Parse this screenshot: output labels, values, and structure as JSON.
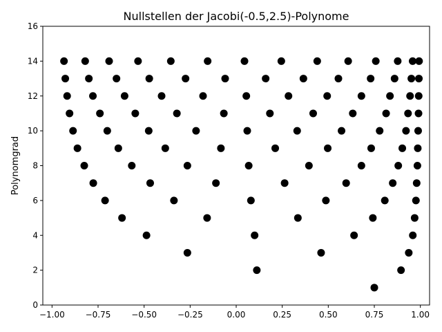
{
  "chart_data": {
    "type": "scatter",
    "title": "Nullstellen der Jacobi(-0.5,2.5)-Polynome",
    "xlabel": "",
    "ylabel": "Polynomgrad",
    "xlim": [
      -1.05,
      1.05
    ],
    "ylim": [
      0,
      16
    ],
    "xticks": [
      -1.0,
      -0.75,
      -0.5,
      -0.25,
      0.0,
      0.25,
      0.5,
      0.75,
      1.0
    ],
    "xtick_labels": [
      "−1.00",
      "−0.75",
      "−0.50",
      "−0.25",
      "0.00",
      "0.25",
      "0.50",
      "0.75",
      "1.00"
    ],
    "yticks": [
      0,
      2,
      4,
      6,
      8,
      10,
      12,
      14,
      16
    ],
    "ytick_labels": [
      "0",
      "2",
      "4",
      "6",
      "8",
      "10",
      "12",
      "14",
      "16"
    ],
    "grid": false,
    "marker_color": "#000000",
    "series": [
      {
        "degree": 1,
        "roots": [
          0.75
        ]
      },
      {
        "degree": 2,
        "roots": [
          0.112,
          0.895
        ]
      },
      {
        "degree": 3,
        "roots": [
          -0.265,
          0.461,
          0.937
        ]
      },
      {
        "degree": 4,
        "roots": [
          -0.487,
          0.1,
          0.64,
          0.959
        ]
      },
      {
        "degree": 5,
        "roots": [
          -0.62,
          -0.158,
          0.335,
          0.742,
          0.969
        ]
      },
      {
        "degree": 6,
        "roots": [
          -0.712,
          -0.338,
          0.08,
          0.487,
          0.807,
          0.976
        ]
      },
      {
        "degree": 7,
        "roots": [
          -0.776,
          -0.467,
          -0.11,
          0.263,
          0.597,
          0.85,
          0.98
        ]
      },
      {
        "degree": 8,
        "roots": [
          -0.825,
          -0.567,
          -0.265,
          0.068,
          0.395,
          0.68,
          0.88,
          0.984
        ]
      },
      {
        "degree": 9,
        "roots": [
          -0.862,
          -0.64,
          -0.385,
          -0.083,
          0.212,
          0.497,
          0.733,
          0.902,
          0.986
        ]
      },
      {
        "degree": 10,
        "roots": [
          -0.886,
          -0.7,
          -0.475,
          -0.218,
          0.06,
          0.331,
          0.572,
          0.779,
          0.922,
          0.988
        ]
      },
      {
        "degree": 11,
        "roots": [
          -0.905,
          -0.74,
          -0.548,
          -0.322,
          -0.067,
          0.183,
          0.418,
          0.633,
          0.814,
          0.933,
          0.99
        ]
      },
      {
        "degree": 12,
        "roots": [
          -0.918,
          -0.778,
          -0.606,
          -0.405,
          -0.18,
          0.055,
          0.284,
          0.494,
          0.68,
          0.835,
          0.944,
          0.991
        ]
      },
      {
        "degree": 13,
        "roots": [
          -0.928,
          -0.8,
          -0.65,
          -0.472,
          -0.275,
          -0.06,
          0.16,
          0.365,
          0.555,
          0.73,
          0.86,
          0.951,
          0.992
        ]
      },
      {
        "degree": 14,
        "roots": [
          -0.935,
          -0.82,
          -0.69,
          -0.533,
          -0.355,
          -0.155,
          0.045,
          0.245,
          0.44,
          0.608,
          0.758,
          0.877,
          0.958,
          0.993
        ]
      }
    ]
  }
}
